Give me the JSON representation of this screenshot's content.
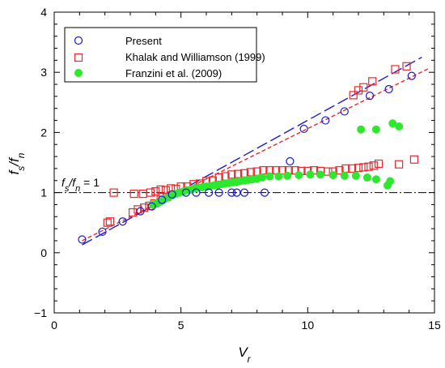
{
  "chart_data": {
    "type": "scatter",
    "xlim": [
      0,
      15
    ],
    "ylim": [
      -1,
      4
    ],
    "x_ticks": [
      0,
      5,
      10,
      15
    ],
    "y_ticks": [
      -1,
      0,
      1,
      2,
      3,
      4
    ],
    "x_tick_labels": [
      "0",
      "5",
      "10",
      "15"
    ],
    "y_tick_labels": [
      "−1",
      "0",
      "1",
      "2",
      "3",
      "4"
    ],
    "xlabel": {
      "main": "V",
      "sub": "r"
    },
    "ylabel": {
      "a": "f",
      "a_sub": "s",
      "slash": "/",
      "b": "f",
      "b_sub": "n"
    },
    "annotation": {
      "a": "f",
      "a_sub": "s",
      "slash": "/",
      "b": "f",
      "b_sub": "n",
      "rest": " = 1"
    },
    "grid": false,
    "legend_position": "top-left",
    "colors": {
      "present": "#1a1acc",
      "khalak": "#e8282e",
      "franzini": "#2ee82e",
      "ref_line": "#000000"
    },
    "series": [
      {
        "name": "Present",
        "marker": "open-circle",
        "points": [
          [
            1.1,
            0.22
          ],
          [
            1.9,
            0.35
          ],
          [
            2.7,
            0.52
          ],
          [
            3.4,
            0.69
          ],
          [
            3.85,
            0.77
          ],
          [
            4.25,
            0.88
          ],
          [
            4.65,
            0.97
          ],
          [
            5.2,
            1.0
          ],
          [
            5.6,
            1.0
          ],
          [
            6.1,
            1.0
          ],
          [
            6.5,
            1.0
          ],
          [
            7.0,
            1.0
          ],
          [
            7.2,
            1.0
          ],
          [
            7.5,
            1.0
          ],
          [
            8.3,
            1.0
          ],
          [
            9.3,
            1.52
          ],
          [
            9.85,
            2.06
          ],
          [
            10.7,
            2.2
          ],
          [
            11.45,
            2.35
          ],
          [
            12.45,
            2.61
          ],
          [
            13.2,
            2.72
          ],
          [
            14.1,
            2.94
          ]
        ]
      },
      {
        "name": "Khalak and Williamson (1999)",
        "marker": "open-square",
        "points": [
          [
            2.1,
            0.5
          ],
          [
            2.2,
            0.52
          ],
          [
            2.35,
            1.0
          ],
          [
            3.1,
            0.67
          ],
          [
            3.3,
            0.72
          ],
          [
            3.55,
            0.75
          ],
          [
            3.75,
            0.78
          ],
          [
            3.95,
            0.82
          ],
          [
            4.2,
            0.88
          ],
          [
            4.45,
            0.93
          ],
          [
            3.15,
            0.98
          ],
          [
            3.5,
            0.98
          ],
          [
            3.8,
            1.0
          ],
          [
            4.0,
            1.02
          ],
          [
            4.2,
            1.05
          ],
          [
            4.4,
            1.04
          ],
          [
            4.6,
            1.07
          ],
          [
            4.8,
            1.06
          ],
          [
            5.0,
            1.1
          ],
          [
            5.25,
            1.1
          ],
          [
            5.5,
            1.14
          ],
          [
            5.75,
            1.15
          ],
          [
            6.0,
            1.19
          ],
          [
            6.25,
            1.2
          ],
          [
            6.5,
            1.25
          ],
          [
            6.75,
            1.27
          ],
          [
            7.0,
            1.3
          ],
          [
            7.25,
            1.31
          ],
          [
            7.5,
            1.32
          ],
          [
            7.75,
            1.34
          ],
          [
            8.0,
            1.35
          ],
          [
            8.25,
            1.37
          ],
          [
            8.5,
            1.37
          ],
          [
            8.75,
            1.37
          ],
          [
            9.0,
            1.37
          ],
          [
            9.25,
            1.37
          ],
          [
            9.5,
            1.37
          ],
          [
            9.75,
            1.36
          ],
          [
            10.0,
            1.36
          ],
          [
            10.25,
            1.37
          ],
          [
            10.5,
            1.36
          ],
          [
            10.8,
            1.35
          ],
          [
            11.0,
            1.35
          ],
          [
            11.25,
            1.37
          ],
          [
            11.5,
            1.4
          ],
          [
            11.75,
            1.4
          ],
          [
            12.0,
            1.41
          ],
          [
            12.2,
            1.42
          ],
          [
            12.4,
            1.43
          ],
          [
            12.6,
            1.45
          ],
          [
            12.8,
            1.48
          ],
          [
            13.6,
            1.47
          ],
          [
            14.2,
            1.55
          ],
          [
            11.8,
            2.62
          ],
          [
            12.0,
            2.7
          ],
          [
            12.2,
            2.75
          ],
          [
            12.55,
            2.85
          ],
          [
            13.45,
            3.05
          ],
          [
            13.9,
            3.1
          ]
        ]
      },
      {
        "name": "Franzini et al. (2009)",
        "marker": "filled-circle",
        "points": [
          [
            3.9,
            0.8
          ],
          [
            4.05,
            0.82
          ],
          [
            4.2,
            0.85
          ],
          [
            4.35,
            0.89
          ],
          [
            4.5,
            0.92
          ],
          [
            4.65,
            0.95
          ],
          [
            4.8,
            0.98
          ],
          [
            4.95,
            1.0
          ],
          [
            5.1,
            1.02
          ],
          [
            5.25,
            1.04
          ],
          [
            5.4,
            1.05
          ],
          [
            5.55,
            1.07
          ],
          [
            5.7,
            1.08
          ],
          [
            5.85,
            1.09
          ],
          [
            6.0,
            1.1
          ],
          [
            6.15,
            1.11
          ],
          [
            6.3,
            1.12
          ],
          [
            6.45,
            1.13
          ],
          [
            6.6,
            1.14
          ],
          [
            6.75,
            1.15
          ],
          [
            6.9,
            1.16
          ],
          [
            7.05,
            1.17
          ],
          [
            7.2,
            1.18
          ],
          [
            7.35,
            1.19
          ],
          [
            7.5,
            1.2
          ],
          [
            7.65,
            1.21
          ],
          [
            7.8,
            1.22
          ],
          [
            8.0,
            1.23
          ],
          [
            8.2,
            1.25
          ],
          [
            8.5,
            1.27
          ],
          [
            8.85,
            1.27
          ],
          [
            9.2,
            1.28
          ],
          [
            9.65,
            1.29
          ],
          [
            10.1,
            1.3
          ],
          [
            10.5,
            1.3
          ],
          [
            11.0,
            1.29
          ],
          [
            11.45,
            1.28
          ],
          [
            11.9,
            1.28
          ],
          [
            12.35,
            1.25
          ],
          [
            12.7,
            1.22
          ],
          [
            13.15,
            1.12
          ],
          [
            13.25,
            1.19
          ],
          [
            12.1,
            2.05
          ],
          [
            12.7,
            2.05
          ],
          [
            13.35,
            2.15
          ],
          [
            13.6,
            2.1
          ]
        ]
      }
    ],
    "lines": [
      {
        "name": "present-fit",
        "style": "long-dash",
        "color": "#1a1acc",
        "x": [
          1.1,
          14.5
        ],
        "y": [
          0.13,
          3.25
        ]
      },
      {
        "name": "khalak-fit",
        "style": "short-dash",
        "color": "#e8282e",
        "x": [
          1.1,
          14.8
        ],
        "y": [
          0.2,
          3.07
        ]
      },
      {
        "name": "reference-line",
        "style": "dash-dot",
        "color": "#000000",
        "x": [
          0,
          15
        ],
        "y": [
          1,
          1
        ]
      }
    ]
  }
}
